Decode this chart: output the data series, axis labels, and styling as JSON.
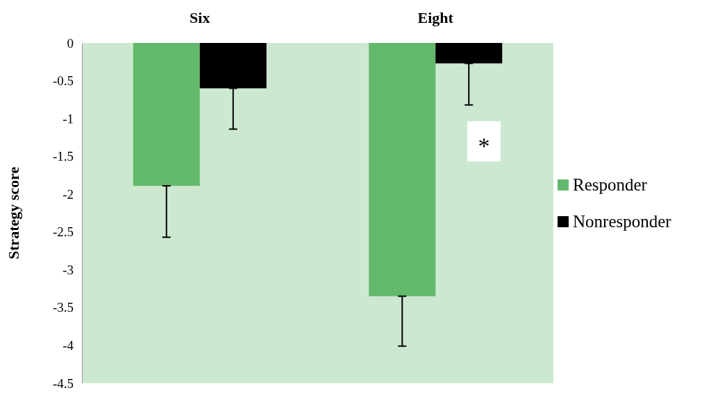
{
  "chart_data": {
    "type": "bar",
    "categories": [
      "Six",
      "Eight"
    ],
    "ylabel": "Strategy score",
    "ylim": [
      -4.5,
      0
    ],
    "yticks": [
      0,
      -0.5,
      -1,
      -1.5,
      -2,
      -2.5,
      -3,
      -3.5,
      -4,
      -4.5
    ],
    "legend": "right",
    "grid": false,
    "annotations": [
      "*"
    ],
    "series": [
      {
        "name": "Responder",
        "color": "#63b96b",
        "values": [
          -1.89,
          -3.35
        ],
        "errors": [
          [
            -2.57,
            -1.89
          ],
          [
            -4.01,
            -3.35
          ]
        ]
      },
      {
        "name": "Nonresponder",
        "color": "#000000",
        "values": [
          -0.6,
          -0.27
        ],
        "errors": [
          [
            -1.14,
            -0.6
          ],
          [
            -0.82,
            -0.27
          ]
        ]
      }
    ]
  }
}
